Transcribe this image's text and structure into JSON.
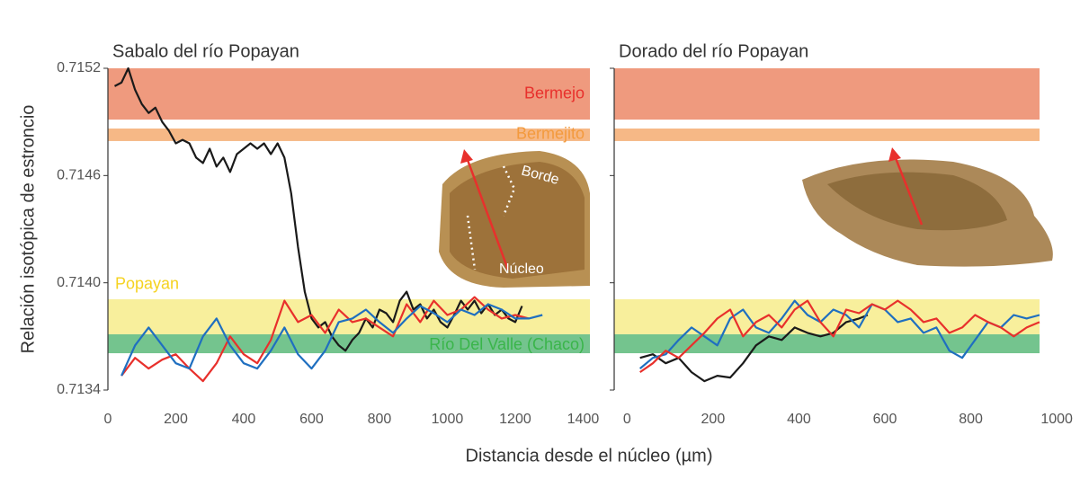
{
  "ylabel": "Relación isotópica de estroncio",
  "xlabel": "Distancia desde el núcleo (µm)",
  "chart_data": [
    {
      "type": "line",
      "title": "Sabalo del río Popayan",
      "xlim": [
        0,
        1420
      ],
      "ylim": [
        0.7134,
        0.7152
      ],
      "xticks": [
        0,
        200,
        400,
        600,
        800,
        1000,
        1200,
        1400
      ],
      "yticks": [
        0.7134,
        {
          "value": 0.714,
          "label": "0.7140"
        },
        0.7146,
        0.7152
      ],
      "ytick_labels": true,
      "bands": [
        {
          "name": "Bermejo",
          "color": "#ef9a7e",
          "label_color": "#e8302c",
          "range": [
            0.714913,
            0.7152
          ]
        },
        {
          "name": "Bermejito",
          "color": "#f6b886",
          "label_color": "#f39a3d",
          "range": [
            0.714793,
            0.714863
          ]
        },
        {
          "name": "Popayan",
          "color": "#f8ef9c",
          "label_color": "#f5d21f",
          "range": [
            0.713712,
            0.713908
          ]
        },
        {
          "name": "Río Del Valle (Chaco)",
          "color": "#74c48e",
          "label_color": "#3ab54a",
          "range": [
            0.713606,
            0.713712
          ]
        }
      ],
      "annotations": [
        "Borde",
        "Núcleo"
      ],
      "series": [
        {
          "color": "#1a1a1a",
          "x": [
            20,
            40,
            60,
            80,
            100,
            120,
            140,
            160,
            180,
            200,
            220,
            240,
            260,
            280,
            300,
            320,
            340,
            360,
            380,
            400,
            420,
            440,
            460,
            480,
            500,
            520,
            540,
            560,
            580,
            600,
            620,
            640,
            660,
            680,
            700,
            720,
            740,
            760,
            780,
            800,
            820,
            840,
            860,
            880,
            900,
            920,
            940,
            960,
            980,
            1000,
            1020,
            1040,
            1060,
            1080,
            1100,
            1120,
            1140,
            1160,
            1180,
            1200,
            1220
          ],
          "values": [
            0.7151,
            0.71512,
            0.7152,
            0.71508,
            0.715,
            0.71495,
            0.71498,
            0.7149,
            0.71485,
            0.71478,
            0.7148,
            0.71478,
            0.7147,
            0.71467,
            0.71475,
            0.71465,
            0.7147,
            0.71462,
            0.71472,
            0.71475,
            0.71478,
            0.71475,
            0.71478,
            0.71472,
            0.71478,
            0.7147,
            0.7145,
            0.7142,
            0.71395,
            0.7138,
            0.71375,
            0.71378,
            0.7137,
            0.71365,
            0.71362,
            0.71368,
            0.71372,
            0.7138,
            0.71375,
            0.71385,
            0.71383,
            0.71378,
            0.7139,
            0.71395,
            0.71385,
            0.71388,
            0.7138,
            0.71385,
            0.71378,
            0.71375,
            0.71382,
            0.7139,
            0.71385,
            0.7139,
            0.71383,
            0.71388,
            0.71382,
            0.71385,
            0.7138,
            0.71378,
            0.71387
          ]
        },
        {
          "color": "#e8302c",
          "x": [
            40,
            80,
            120,
            160,
            200,
            240,
            280,
            320,
            360,
            400,
            440,
            480,
            520,
            560,
            600,
            640,
            680,
            720,
            760,
            800,
            840,
            880,
            920,
            960,
            1000,
            1040,
            1080,
            1120,
            1160,
            1200,
            1240
          ],
          "values": [
            0.71348,
            0.71358,
            0.71352,
            0.71357,
            0.7136,
            0.71352,
            0.71345,
            0.71355,
            0.7137,
            0.7136,
            0.71355,
            0.71368,
            0.7139,
            0.71378,
            0.71382,
            0.71372,
            0.71385,
            0.71378,
            0.7138,
            0.71375,
            0.7137,
            0.71388,
            0.71378,
            0.7139,
            0.71382,
            0.71385,
            0.71392,
            0.71385,
            0.7138,
            0.71382,
            0.7138
          ]
        },
        {
          "color": "#1f6fc0",
          "x": [
            40,
            80,
            120,
            160,
            200,
            240,
            280,
            320,
            360,
            400,
            440,
            480,
            520,
            560,
            600,
            640,
            680,
            720,
            760,
            800,
            840,
            880,
            920,
            960,
            1000,
            1040,
            1080,
            1120,
            1160,
            1200,
            1240,
            1280
          ],
          "values": [
            0.71348,
            0.71365,
            0.71375,
            0.71365,
            0.71355,
            0.71352,
            0.7137,
            0.7138,
            0.71365,
            0.71355,
            0.71352,
            0.71362,
            0.71375,
            0.7136,
            0.71352,
            0.71362,
            0.71378,
            0.7138,
            0.71385,
            0.71378,
            0.71372,
            0.7138,
            0.71387,
            0.71383,
            0.71378,
            0.71385,
            0.71382,
            0.71388,
            0.71385,
            0.7138,
            0.7138,
            0.71382
          ]
        }
      ]
    },
    {
      "type": "line",
      "title": "Dorado del río Popayan",
      "xlim": [
        -30,
        1050
      ],
      "ylim": [
        0.7134,
        0.7152
      ],
      "xticks": [
        0,
        200,
        400,
        600,
        800,
        1000
      ],
      "yticks": [
        0.7134,
        0.714,
        0.7146,
        0.7152
      ],
      "ytick_labels": false,
      "bands": [
        {
          "color": "#ef9a7e",
          "range": [
            0.714913,
            0.7152
          ]
        },
        {
          "color": "#f6b886",
          "range": [
            0.714793,
            0.714863
          ]
        },
        {
          "color": "#f8ef9c",
          "range": [
            0.713712,
            0.713908
          ]
        },
        {
          "color": "#74c48e",
          "range": [
            0.713606,
            0.713712
          ]
        }
      ],
      "series": [
        {
          "color": "#1a1a1a",
          "x": [
            30,
            60,
            90,
            120,
            150,
            180,
            210,
            240,
            270,
            300,
            330,
            360,
            390,
            420,
            450,
            480,
            510,
            540,
            560
          ],
          "values": [
            0.71358,
            0.7136,
            0.71355,
            0.71358,
            0.7135,
            0.71345,
            0.71348,
            0.71347,
            0.71355,
            0.71365,
            0.7137,
            0.71368,
            0.71375,
            0.71372,
            0.7137,
            0.71372,
            0.71378,
            0.7138,
            0.71382
          ]
        },
        {
          "color": "#1f6fc0",
          "x": [
            30,
            60,
            90,
            120,
            150,
            180,
            210,
            240,
            270,
            300,
            330,
            360,
            390,
            420,
            450,
            480,
            510,
            540,
            570,
            600,
            630,
            660,
            690,
            720,
            750,
            780,
            810,
            840,
            870,
            900,
            930,
            960
          ],
          "values": [
            0.71352,
            0.71358,
            0.7136,
            0.71368,
            0.71375,
            0.7137,
            0.71365,
            0.7138,
            0.71385,
            0.71375,
            0.71372,
            0.7138,
            0.7139,
            0.71382,
            0.71378,
            0.71385,
            0.71382,
            0.71375,
            0.71388,
            0.71385,
            0.71378,
            0.7138,
            0.71372,
            0.71375,
            0.71362,
            0.71358,
            0.71368,
            0.71378,
            0.71375,
            0.71382,
            0.7138,
            0.71382
          ]
        },
        {
          "color": "#e8302c",
          "x": [
            30,
            60,
            90,
            120,
            150,
            180,
            210,
            240,
            270,
            300,
            330,
            360,
            390,
            420,
            450,
            480,
            510,
            540,
            570,
            600,
            630,
            660,
            690,
            720,
            750,
            780,
            810,
            840,
            870,
            900,
            930,
            960
          ],
          "values": [
            0.7135,
            0.71355,
            0.71362,
            0.71358,
            0.71365,
            0.71372,
            0.7138,
            0.71385,
            0.7137,
            0.71378,
            0.71382,
            0.71375,
            0.71385,
            0.7139,
            0.71378,
            0.7137,
            0.71385,
            0.71383,
            0.71388,
            0.71385,
            0.7139,
            0.71385,
            0.71378,
            0.7138,
            0.71372,
            0.71375,
            0.71382,
            0.71378,
            0.71375,
            0.7137,
            0.71375,
            0.71378
          ]
        }
      ]
    }
  ]
}
